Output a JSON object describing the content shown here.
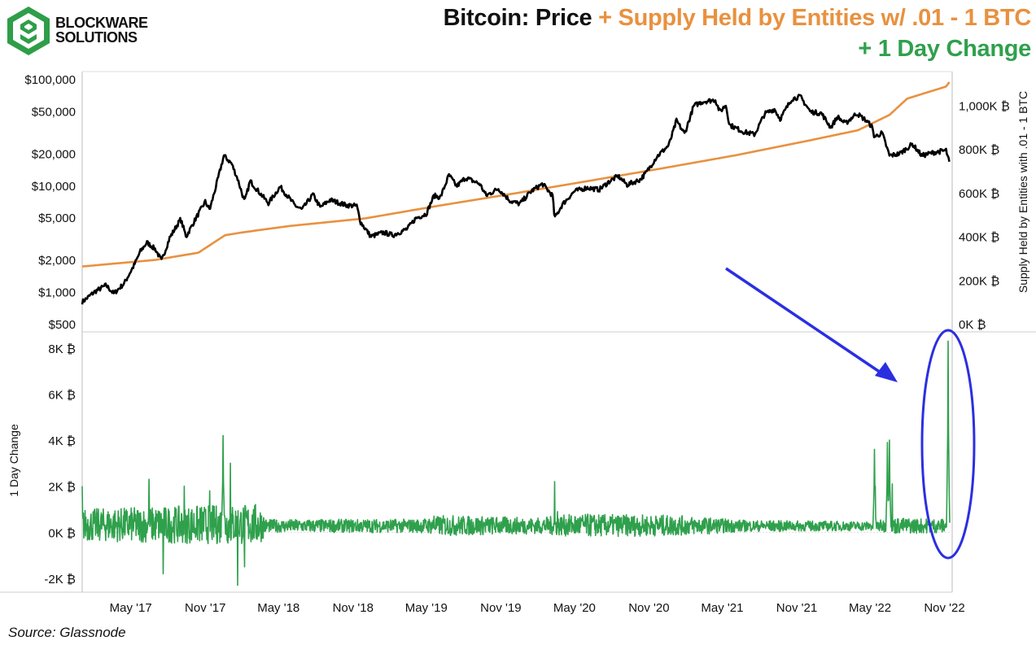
{
  "brand": {
    "line1": "BLOCKWARE",
    "line2": "SOLUTIONS",
    "color": "#2e9e48"
  },
  "title": {
    "part1": "Bitcoin: Price",
    "part2": " + Supply Held by Entities w/ .01 - 1 BTC",
    "part3": "+ 1 Day Change"
  },
  "colors": {
    "price": "#000000",
    "supply": "#e8913f",
    "change": "#2fa04c",
    "annotation": "#2b2fe0",
    "grid": "#cccccc"
  },
  "source": "Source: Glassnode",
  "chart_data": [
    {
      "type": "line",
      "title": "Bitcoin: Price + Supply Held by Entities w/ .01 - 1 BTC",
      "ylabel_left": "",
      "ylabel_right": "Supply Held by Entities with .01 - 1 BTC",
      "y_left_scale": "log",
      "y_left_range": [
        500,
        100000
      ],
      "y_left_ticks": [
        "$500",
        "$1,000",
        "$2,000",
        "$5,000",
        "$10,000",
        "$20,000",
        "$50,000",
        "$100,000"
      ],
      "y_left_tick_values": [
        500,
        1000,
        2000,
        5000,
        10000,
        20000,
        50000,
        100000
      ],
      "y_right_range": [
        0,
        1120000
      ],
      "y_right_ticks": [
        "0K ₿",
        "200K ₿",
        "400K ₿",
        "600K ₿",
        "800K ₿",
        "1,000K ₿"
      ],
      "y_right_tick_values": [
        0,
        200000,
        400000,
        600000,
        800000,
        1000000
      ],
      "series": [
        {
          "name": "Price",
          "axis": "left",
          "points": [
            [
              "2017-01-01",
              800
            ],
            [
              "2017-02-01",
              1000
            ],
            [
              "2017-03-01",
              1150
            ],
            [
              "2017-03-20",
              960
            ],
            [
              "2017-04-15",
              1200
            ],
            [
              "2017-05-10",
              1800
            ],
            [
              "2017-05-25",
              2400
            ],
            [
              "2017-06-10",
              2900
            ],
            [
              "2017-07-01",
              2500
            ],
            [
              "2017-07-16",
              1950
            ],
            [
              "2017-08-05",
              3200
            ],
            [
              "2017-09-01",
              4800
            ],
            [
              "2017-09-15",
              3300
            ],
            [
              "2017-10-10",
              5000
            ],
            [
              "2017-11-01",
              7000
            ],
            [
              "2017-11-12",
              5900
            ],
            [
              "2017-12-01",
              11000
            ],
            [
              "2017-12-17",
              19000
            ],
            [
              "2018-01-05",
              16000
            ],
            [
              "2018-01-20",
              11500
            ],
            [
              "2018-02-06",
              7000
            ],
            [
              "2018-02-20",
              11000
            ],
            [
              "2018-03-10",
              9000
            ],
            [
              "2018-04-06",
              6800
            ],
            [
              "2018-05-05",
              9700
            ],
            [
              "2018-06-10",
              6500
            ],
            [
              "2018-06-28",
              5900
            ],
            [
              "2018-07-25",
              8200
            ],
            [
              "2018-08-12",
              6200
            ],
            [
              "2018-09-05",
              7300
            ],
            [
              "2018-10-15",
              6500
            ],
            [
              "2018-11-10",
              6400
            ],
            [
              "2018-11-20",
              4500
            ],
            [
              "2018-12-15",
              3300
            ],
            [
              "2019-01-15",
              3600
            ],
            [
              "2019-02-08",
              3400
            ],
            [
              "2019-03-15",
              3900
            ],
            [
              "2019-04-05",
              4900
            ],
            [
              "2019-05-01",
              5400
            ],
            [
              "2019-05-20",
              8000
            ],
            [
              "2019-06-05",
              7700
            ],
            [
              "2019-06-26",
              12500
            ],
            [
              "2019-07-15",
              9800
            ],
            [
              "2019-08-06",
              11800
            ],
            [
              "2019-09-10",
              10300
            ],
            [
              "2019-09-26",
              8000
            ],
            [
              "2019-10-26",
              9300
            ],
            [
              "2019-11-25",
              7100
            ],
            [
              "2019-12-18",
              6700
            ],
            [
              "2020-01-15",
              8800
            ],
            [
              "2020-02-12",
              10300
            ],
            [
              "2020-03-08",
              8000
            ],
            [
              "2020-03-13",
              4900
            ],
            [
              "2020-04-01",
              6600
            ],
            [
              "2020-05-01",
              8800
            ],
            [
              "2020-06-01",
              9500
            ],
            [
              "2020-07-01",
              9100
            ],
            [
              "2020-07-28",
              11000
            ],
            [
              "2020-08-17",
              12200
            ],
            [
              "2020-09-08",
              10100
            ],
            [
              "2020-10-10",
              11300
            ],
            [
              "2020-10-25",
              13100
            ],
            [
              "2020-11-20",
              18500
            ],
            [
              "2020-12-20",
              23800
            ],
            [
              "2021-01-08",
              40500
            ],
            [
              "2021-01-28",
              30500
            ],
            [
              "2021-02-20",
              56000
            ],
            [
              "2021-03-13",
              61000
            ],
            [
              "2021-04-14",
              63500
            ],
            [
              "2021-04-25",
              49000
            ],
            [
              "2021-05-10",
              57000
            ],
            [
              "2021-05-19",
              37000
            ],
            [
              "2021-06-21",
              32000
            ],
            [
              "2021-07-20",
              30000
            ],
            [
              "2021-08-14",
              47000
            ],
            [
              "2021-09-07",
              52000
            ],
            [
              "2021-09-21",
              42000
            ],
            [
              "2021-10-20",
              65000
            ],
            [
              "2021-11-10",
              68000
            ],
            [
              "2021-12-05",
              49000
            ],
            [
              "2022-01-01",
              47500
            ],
            [
              "2022-01-24",
              35000
            ],
            [
              "2022-02-10",
              44000
            ],
            [
              "2022-03-01",
              38000
            ],
            [
              "2022-03-29",
              47500
            ],
            [
              "2022-04-20",
              41000
            ],
            [
              "2022-05-05",
              36000
            ],
            [
              "2022-05-12",
              28500
            ],
            [
              "2022-05-31",
              31000
            ],
            [
              "2022-06-18",
              19000
            ],
            [
              "2022-07-13",
              19800
            ],
            [
              "2022-08-14",
              24400
            ],
            [
              "2022-09-06",
              19000
            ],
            [
              "2022-10-04",
              20300
            ],
            [
              "2022-11-05",
              21300
            ],
            [
              "2022-11-13",
              16300
            ]
          ]
        },
        {
          "name": "Supply Held by Entities w/ .01 - 1 BTC",
          "axis": "right",
          "points": [
            [
              "2017-01-01",
              262000
            ],
            [
              "2017-07-01",
              292000
            ],
            [
              "2017-10-15",
              325000
            ],
            [
              "2017-12-20",
              405000
            ],
            [
              "2018-02-01",
              418000
            ],
            [
              "2018-06-01",
              448000
            ],
            [
              "2018-12-01",
              482000
            ],
            [
              "2019-06-01",
              540000
            ],
            [
              "2019-12-01",
              595000
            ],
            [
              "2020-06-01",
              652000
            ],
            [
              "2020-12-01",
              710000
            ],
            [
              "2021-06-01",
              770000
            ],
            [
              "2021-12-01",
              838000
            ],
            [
              "2022-04-01",
              885000
            ],
            [
              "2022-06-18",
              955000
            ],
            [
              "2022-08-01",
              1030000
            ],
            [
              "2022-11-05",
              1085000
            ],
            [
              "2022-11-14",
              1108000
            ]
          ]
        }
      ]
    },
    {
      "type": "line",
      "title": "",
      "ylabel": "1 Day Change",
      "y_range": [
        -2600,
        8700
      ],
      "y_ticks": [
        "-2K ₿",
        "0K ₿",
        "2K ₿",
        "4K ₿",
        "6K ₿",
        "8K ₿"
      ],
      "y_tick_values": [
        -2000,
        0,
        2000,
        4000,
        6000,
        8000
      ],
      "x_ticks": [
        "May '17",
        "Nov '17",
        "May '18",
        "Nov '18",
        "May '19",
        "Nov '19",
        "May '20",
        "Nov '20",
        "May '21",
        "Nov '21",
        "May '22",
        "Nov '22"
      ],
      "x_tick_dates": [
        "2017-05-01",
        "2017-11-01",
        "2018-05-01",
        "2018-11-01",
        "2019-05-01",
        "2019-11-01",
        "2020-05-01",
        "2020-11-01",
        "2021-05-01",
        "2021-11-01",
        "2022-05-01",
        "2022-11-01"
      ],
      "x_range": [
        "2017-01-01",
        "2022-11-20"
      ],
      "series": [
        {
          "name": "1 Day Change",
          "spikes": [
            [
              "2017-01-01",
              2000
            ],
            [
              "2017-06-15",
              2300
            ],
            [
              "2017-07-20",
              -1800
            ],
            [
              "2017-09-10",
              2000
            ],
            [
              "2017-11-12",
              1800
            ],
            [
              "2017-12-15",
              4200
            ],
            [
              "2018-01-02",
              3000
            ],
            [
              "2018-01-20",
              -2300
            ],
            [
              "2018-02-06",
              -1500
            ],
            [
              "2019-05-20",
              700
            ],
            [
              "2020-03-13",
              2200
            ],
            [
              "2020-03-20",
              900
            ],
            [
              "2022-05-12",
              3600
            ],
            [
              "2022-05-14",
              2000
            ],
            [
              "2022-06-13",
              3900
            ],
            [
              "2022-06-18",
              4000
            ],
            [
              "2022-06-25",
              2100
            ],
            [
              "2022-11-10",
              8300
            ]
          ],
          "volatility_bands": [
            [
              "2017-01-01",
              700
            ],
            [
              "2018-03-15",
              900
            ],
            [
              "2018-04-01",
              280
            ],
            [
              "2019-04-15",
              300
            ],
            [
              "2019-06-15",
              450
            ],
            [
              "2020-02-01",
              350
            ],
            [
              "2020-05-01",
              500
            ],
            [
              "2021-01-01",
              450
            ],
            [
              "2021-07-01",
              250
            ],
            [
              "2022-05-01",
              200
            ],
            [
              "2022-07-01",
              350
            ],
            [
              "2022-11-01",
              300
            ]
          ]
        }
      ]
    }
  ]
}
